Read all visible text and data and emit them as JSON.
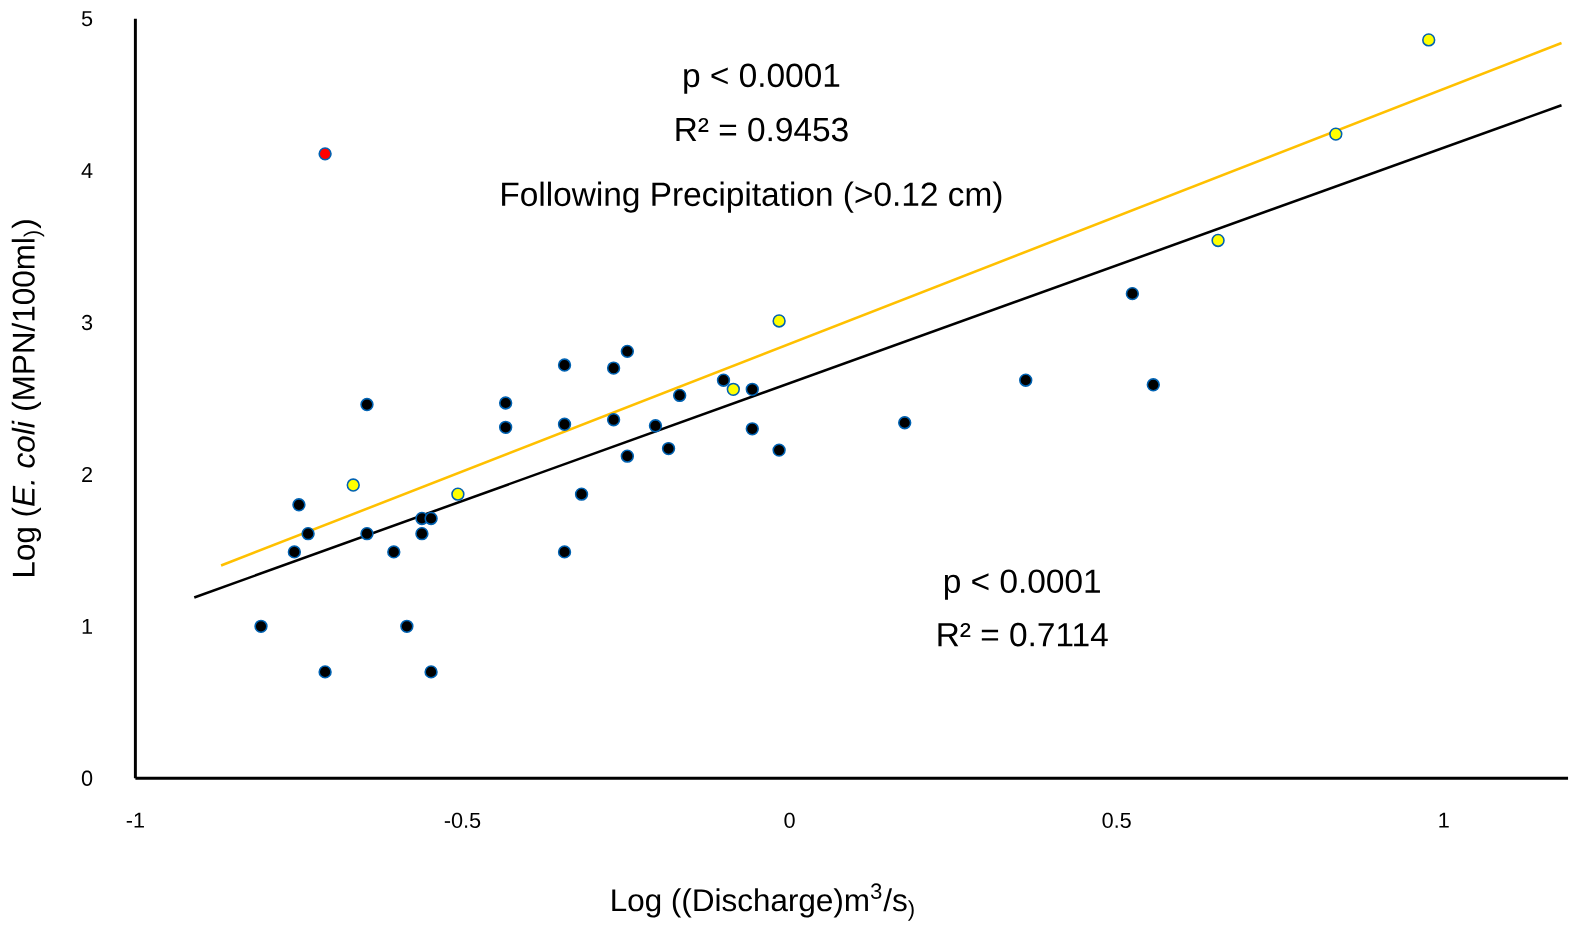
{
  "chart_data": {
    "type": "scatter",
    "xlabel": "Log ((Discharge)m$^{3}$/s$_{)}$",
    "ylabel": "Log (*E. coli* (MPN/100ml$_{)}$)",
    "xlim": [
      -1,
      1.19
    ],
    "ylim": [
      0,
      5
    ],
    "marker": "circle",
    "xticks": [
      -1,
      -0.5,
      0,
      0.5,
      1
    ],
    "yticks": [
      0,
      1,
      2,
      3,
      4,
      5
    ],
    "annotations": [
      "p < 0.0001",
      "R² = 0.9453",
      "Following Precipitation (>0.12 cm)",
      "p < 0.0001",
      "R² = 0.7114"
    ],
    "series": [
      {
        "type": "line",
        "marker": "none",
        "color": "#000000",
        "x": [
          -0.91,
          1.18
        ],
        "values": [
          1.19,
          4.43
        ]
      },
      {
        "type": "line",
        "marker": "none",
        "color": "#ffc000",
        "x": [
          -0.869,
          1.18
        ],
        "values": [
          1.4,
          4.84
        ]
      },
      {
        "color": "#000000",
        "x": [
          -0.808,
          -0.757,
          -0.75,
          -0.736,
          -0.71,
          -0.646,
          -0.646,
          -0.605,
          -0.585,
          -0.562,
          -0.562,
          -0.548,
          -0.548,
          -0.434,
          -0.434,
          -0.344,
          -0.344,
          -0.344,
          -0.318,
          -0.269,
          -0.269,
          -0.248,
          -0.248,
          -0.205,
          -0.185,
          -0.168,
          -0.101,
          -0.057,
          -0.057,
          -0.016,
          0.176,
          0.361,
          0.524,
          0.556
        ],
        "values": [
          1.0,
          1.49,
          1.8,
          1.61,
          0.7,
          2.46,
          1.61,
          1.49,
          1.0,
          1.71,
          1.61,
          1.71,
          0.7,
          2.47,
          2.31,
          2.72,
          2.33,
          1.49,
          1.87,
          2.7,
          2.36,
          2.81,
          2.12,
          2.32,
          2.17,
          2.52,
          2.62,
          2.56,
          2.3,
          2.16,
          2.34,
          2.62,
          3.19,
          2.59
        ]
      },
      {
        "color": "#ffff00",
        "x": [
          -0.667,
          -0.507,
          -0.086,
          -0.016,
          0.655,
          0.835,
          0.977
        ],
        "values": [
          1.93,
          1.87,
          2.56,
          3.01,
          3.54,
          4.24,
          4.86
        ]
      },
      {
        "color": "#ff0000",
        "x": [
          -0.71
        ],
        "values": [
          4.11
        ]
      }
    ]
  }
}
